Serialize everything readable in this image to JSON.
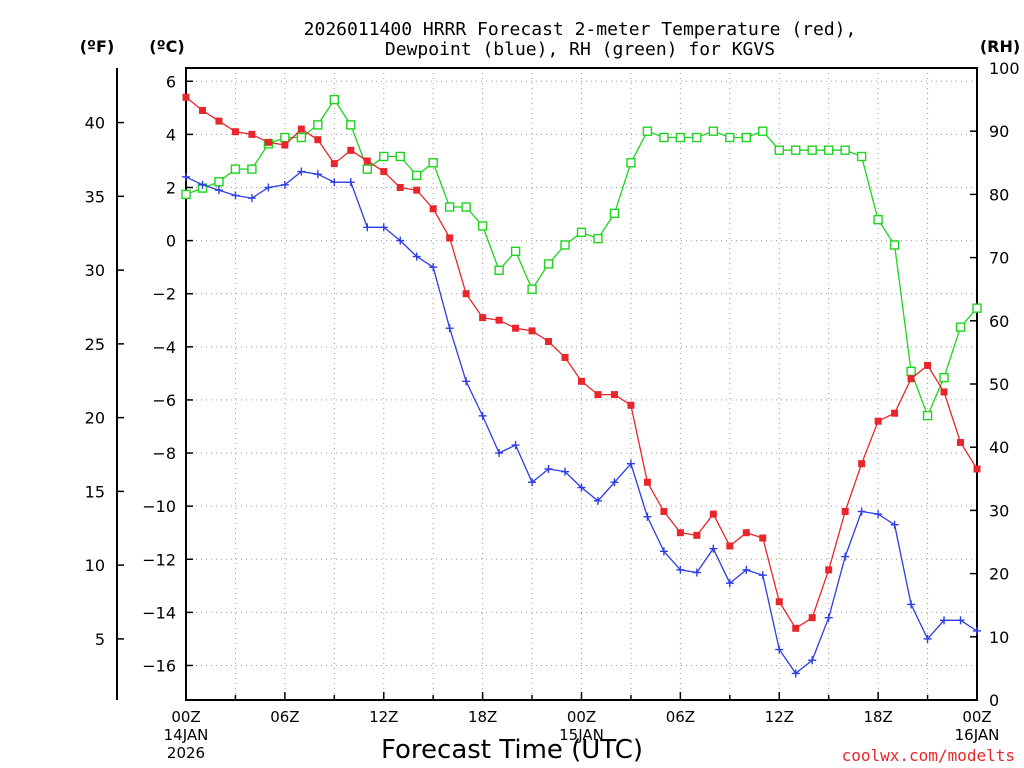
{
  "chart_data": {
    "type": "line",
    "title_line1": "2026011400 HRRR Forecast 2-meter Temperature (red),",
    "title_line2": "Dewpoint (blue), RH (green) for KGVS",
    "xlabel": "Forecast Time (UTC)",
    "credit": "coolwx.com/modelts",
    "x_hours": [
      0,
      1,
      2,
      3,
      4,
      5,
      6,
      7,
      8,
      9,
      10,
      11,
      12,
      13,
      14,
      15,
      16,
      17,
      18,
      19,
      20,
      21,
      22,
      23,
      24,
      25,
      26,
      27,
      28,
      29,
      30,
      31,
      32,
      33,
      34,
      35,
      36,
      37,
      38,
      39,
      40,
      41,
      42,
      43,
      44,
      45,
      46,
      47,
      48
    ],
    "x_range": [
      0,
      48
    ],
    "x_ticks": [
      {
        "hour": 0,
        "label": "00Z",
        "sub1": "14JAN",
        "sub2": "2026"
      },
      {
        "hour": 6,
        "label": "06Z"
      },
      {
        "hour": 12,
        "label": "12Z"
      },
      {
        "hour": 18,
        "label": "18Z"
      },
      {
        "hour": 24,
        "label": "00Z",
        "sub1": "15JAN"
      },
      {
        "hour": 30,
        "label": "06Z"
      },
      {
        "hour": 36,
        "label": "12Z"
      },
      {
        "hour": 42,
        "label": "18Z"
      },
      {
        "hour": 48,
        "label": "00Z",
        "sub1": "16JAN"
      }
    ],
    "y_celsius": {
      "unit": "(ºC)",
      "range": [
        -17.3,
        6.5
      ],
      "ticks": [
        6,
        4,
        2,
        0,
        -2,
        -4,
        -6,
        -8,
        -10,
        -12,
        -14,
        -16
      ],
      "tick_labels": [
        "6",
        "4",
        "2",
        "0",
        "−2",
        "−4",
        "−6",
        "−8",
        "−10",
        "−12",
        "−14",
        "−16"
      ]
    },
    "y_fahrenheit": {
      "unit": "(ºF)",
      "ticks": [
        40,
        35,
        30,
        25,
        20,
        15,
        10,
        5
      ],
      "tick_labels": [
        "40",
        "35",
        "30",
        "25",
        "20",
        "15",
        "10",
        "5"
      ]
    },
    "y_rh": {
      "unit": "(RH)",
      "range": [
        0,
        100
      ],
      "ticks": [
        0,
        10,
        20,
        30,
        40,
        50,
        60,
        70,
        80,
        90,
        100
      ],
      "tick_labels": [
        "0",
        "10",
        "20",
        "30",
        "40",
        "50",
        "60",
        "70",
        "80",
        "90",
        "100"
      ]
    },
    "series": [
      {
        "name": "2-meter Temperature (°C)",
        "axis": "celsius",
        "color": "#e8262b",
        "marker": "filled-square",
        "values": [
          5.4,
          4.9,
          4.5,
          4.1,
          4.0,
          3.7,
          3.6,
          4.2,
          3.8,
          2.9,
          3.4,
          3.0,
          2.6,
          2.0,
          1.9,
          1.2,
          0.1,
          -2.0,
          -2.9,
          -3.0,
          -3.3,
          -3.4,
          -3.8,
          -4.4,
          -5.3,
          -5.8,
          -5.8,
          -6.2,
          -9.1,
          -10.2,
          -11.0,
          -11.1,
          -10.3,
          -11.5,
          -11.0,
          -11.2,
          -13.6,
          -14.6,
          -14.2,
          -12.4,
          -10.2,
          -8.4,
          -6.8,
          -6.5,
          -5.2,
          -4.7,
          -5.7,
          -7.6,
          -8.6
        ]
      },
      {
        "name": "Dewpoint (°C)",
        "axis": "celsius",
        "color": "#2d3de6",
        "marker": "plus",
        "values": [
          2.4,
          2.1,
          1.9,
          1.7,
          1.6,
          2.0,
          2.1,
          2.6,
          2.5,
          2.2,
          2.2,
          0.5,
          0.5,
          0.0,
          -0.6,
          -1.0,
          -3.3,
          -5.3,
          -6.6,
          -8.0,
          -7.7,
          -9.1,
          -8.6,
          -8.7,
          -9.3,
          -9.8,
          -9.1,
          -8.4,
          -10.4,
          -11.7,
          -12.4,
          -12.5,
          -11.6,
          -12.9,
          -12.4,
          -12.6,
          -15.4,
          -16.3,
          -15.8,
          -14.2,
          -11.9,
          -10.2,
          -10.3,
          -10.7,
          -13.7,
          -15.0,
          -14.3,
          -14.3,
          -14.7
        ]
      },
      {
        "name": "RH (%)",
        "axis": "rh",
        "color": "#1ed41e",
        "marker": "open-square",
        "values": [
          80,
          81,
          82,
          84,
          84,
          88,
          89,
          89,
          91,
          95,
          91,
          84,
          86,
          86,
          83,
          85,
          78,
          78,
          75,
          68,
          71,
          65,
          69,
          72,
          74,
          73,
          77,
          85,
          90,
          89,
          89,
          89,
          90,
          89,
          89,
          90,
          87,
          87,
          87,
          87,
          87,
          86,
          76,
          72,
          52,
          45,
          51,
          59,
          62
        ]
      }
    ]
  }
}
